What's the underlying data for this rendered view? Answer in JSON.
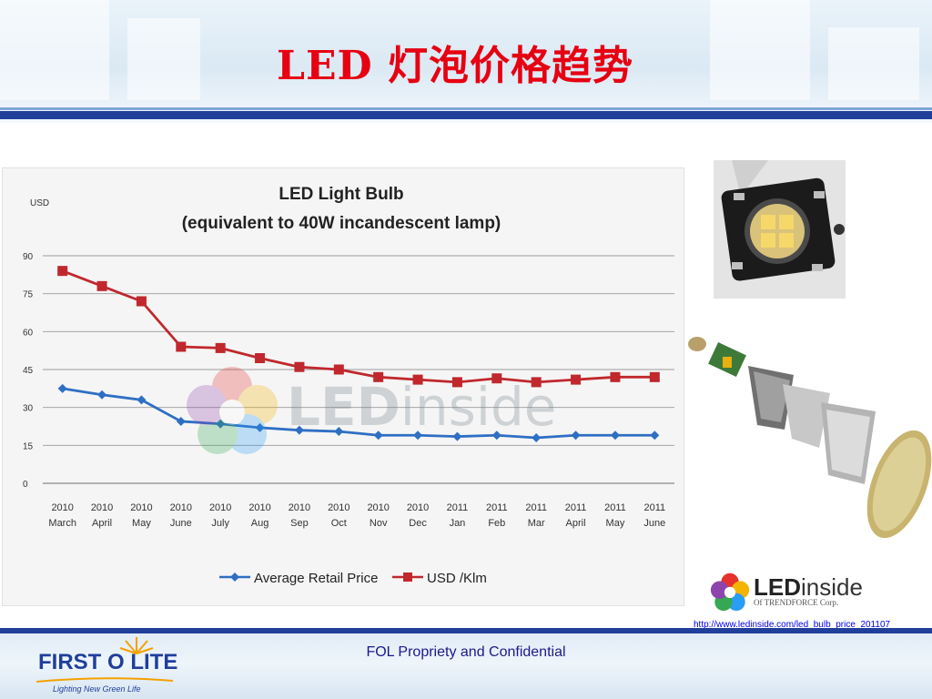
{
  "slide": {
    "title": "LED 灯泡价格趋势",
    "footer": "FOL Propriety and Confidential",
    "source_url": "http://www.ledinside.com/led_bulb_price_201107"
  },
  "logos": {
    "ledinside_main_bold": "LED",
    "ledinside_main_rest": "inside",
    "ledinside_sub": "Of TRENDFORCE Corp.",
    "watermark_bold": "LED",
    "watermark_rest": "inside",
    "brand_name": "FIRST O LITE",
    "brand_tagline": "Lighting New Green Life"
  },
  "colors": {
    "title": "#e60012",
    "series_price": "#2e6fc4",
    "series_usd_klm": "#c0282d",
    "rule": "#1f3f9a"
  },
  "chart_data": {
    "type": "line",
    "title": "LED Light Bulb",
    "subtitle": "(equivalent to 40W incandescent lamp)",
    "ylabel": "USD",
    "ylim": [
      0,
      90
    ],
    "yticks": [
      "0",
      "15",
      "30",
      "45",
      "60",
      "75",
      "90"
    ],
    "grid": true,
    "legend_position": "bottom",
    "categories": [
      [
        "2010",
        "March"
      ],
      [
        "2010",
        "April"
      ],
      [
        "2010",
        "May"
      ],
      [
        "2010",
        "June"
      ],
      [
        "2010",
        "July"
      ],
      [
        "2010",
        "Aug"
      ],
      [
        "2010",
        "Sep"
      ],
      [
        "2010",
        "Oct"
      ],
      [
        "2010",
        "Nov"
      ],
      [
        "2010",
        "Dec"
      ],
      [
        "2011",
        "Jan"
      ],
      [
        "2011",
        "Feb"
      ],
      [
        "2011",
        "Mar"
      ],
      [
        "2011",
        "April"
      ],
      [
        "2011",
        "May"
      ],
      [
        "2011",
        "June"
      ]
    ],
    "series": [
      {
        "name": "Average Retail Price",
        "color": "#2e6fc4",
        "marker": "diamond",
        "values": [
          37.5,
          35,
          33,
          24.5,
          23.5,
          22,
          21,
          20.5,
          19,
          19,
          18.5,
          19,
          18,
          19,
          19,
          19
        ]
      },
      {
        "name": "USD /Klm",
        "color": "#c0282d",
        "marker": "square",
        "values": [
          84,
          78,
          72,
          54,
          53.5,
          49.5,
          46,
          45,
          42,
          41,
          40,
          41.5,
          40,
          41,
          42,
          42
        ]
      }
    ]
  }
}
